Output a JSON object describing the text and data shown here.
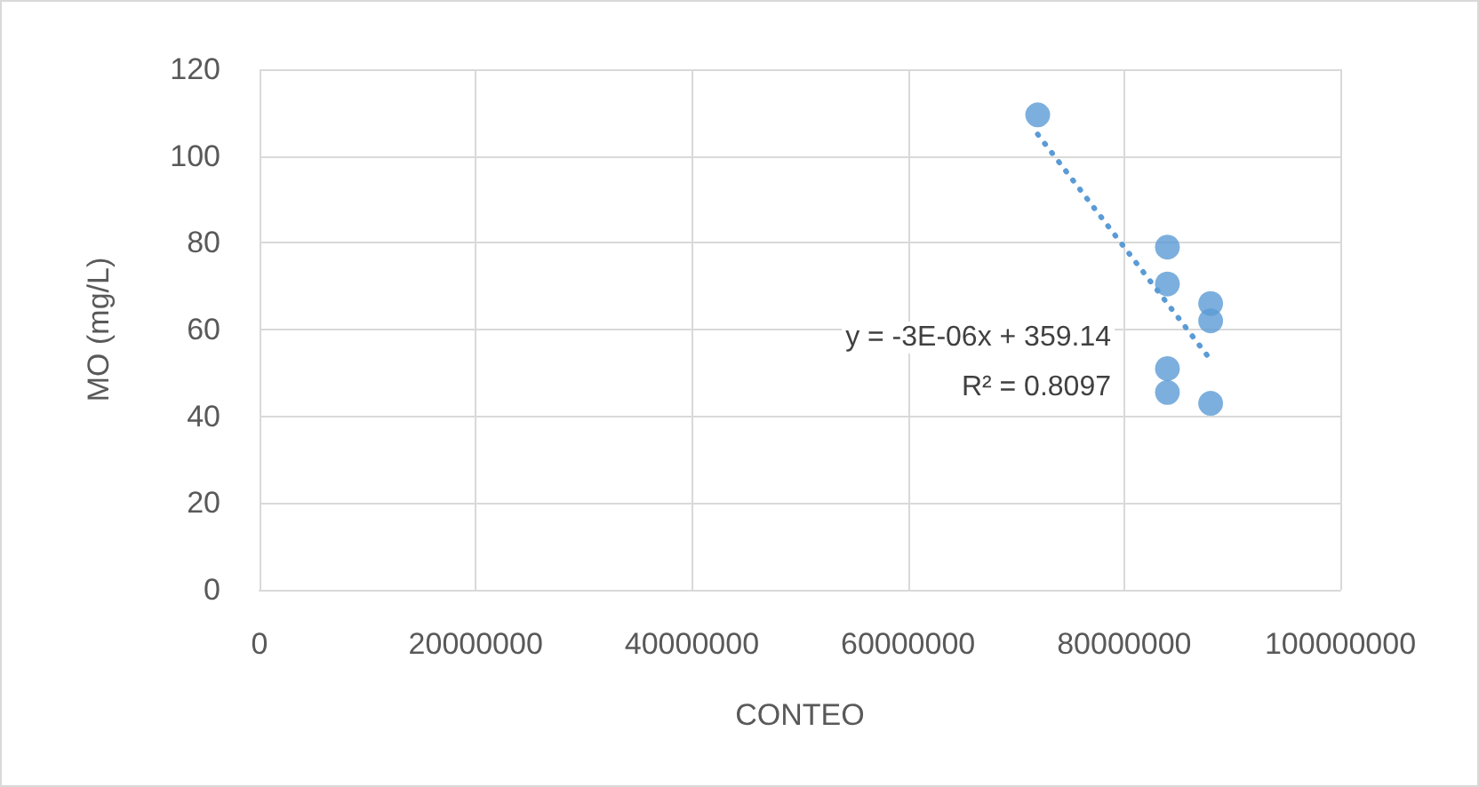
{
  "chart_data": {
    "type": "scatter",
    "xlabel": "CONTEO",
    "ylabel": "MO (mg/L)",
    "series": [
      {
        "color": "#5b9bd5",
        "marker": "circle",
        "x": [
          72000000,
          84000000,
          84000000,
          88000000,
          88000000,
          84000000,
          84000000,
          88000000
        ],
        "values": [
          109.5,
          79,
          70.5,
          66,
          62,
          51,
          45.5,
          43
        ]
      },
      {
        "type": "line",
        "color": "#5b9bd5",
        "marker": "none",
        "line_style": "dotted",
        "x": [
          72000000,
          88000000
        ],
        "values": [
          105,
          53
        ]
      }
    ],
    "annotations": [
      "y = -3E-06x + 359.14",
      "R² = 0.8097"
    ],
    "xlim": [
      0,
      100000000
    ],
    "xticks": [
      0,
      20000000,
      40000000,
      60000000,
      80000000,
      100000000
    ],
    "ylim": [
      0,
      120
    ],
    "yticks": [
      0,
      20,
      40,
      60,
      80,
      100,
      120
    ],
    "grid": true
  }
}
